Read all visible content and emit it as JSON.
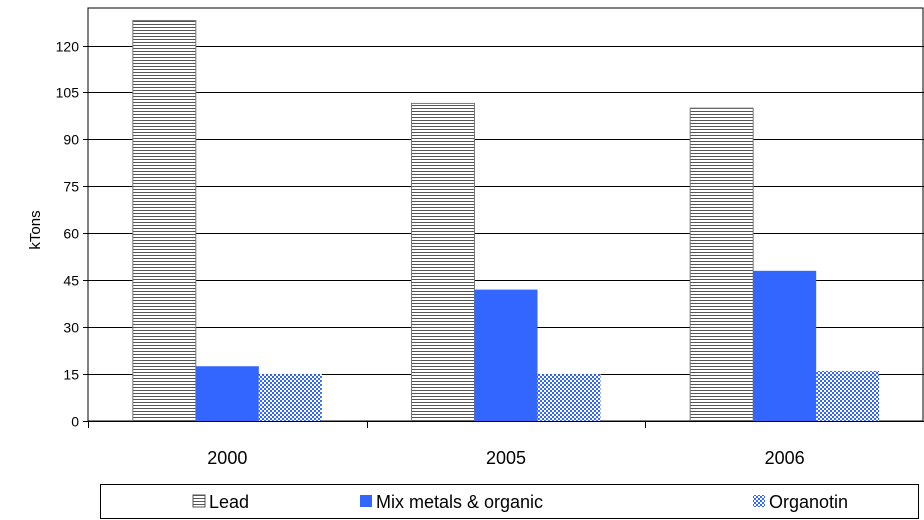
{
  "chart_data": {
    "type": "bar",
    "ylabel": "kTons",
    "xlabel": "",
    "ylim": [
      0,
      132
    ],
    "yticks": [
      0,
      15,
      30,
      45,
      60,
      75,
      90,
      105,
      120
    ],
    "categories": [
      "2000",
      "2005",
      "2006"
    ],
    "series": [
      {
        "name": "Lead",
        "values": [
          128,
          101.5,
          100
        ],
        "color": "#ffffff",
        "pattern": "horizontal-stripes"
      },
      {
        "name": "Mix metals & organic",
        "values": [
          17.5,
          42,
          48
        ],
        "color": "#3366ff",
        "pattern": "solid"
      },
      {
        "name": "Organotin",
        "values": [
          15,
          15,
          16
        ],
        "color": "#3366ff",
        "pattern": "checker"
      }
    ],
    "grid": true,
    "legend_position": "bottom"
  }
}
